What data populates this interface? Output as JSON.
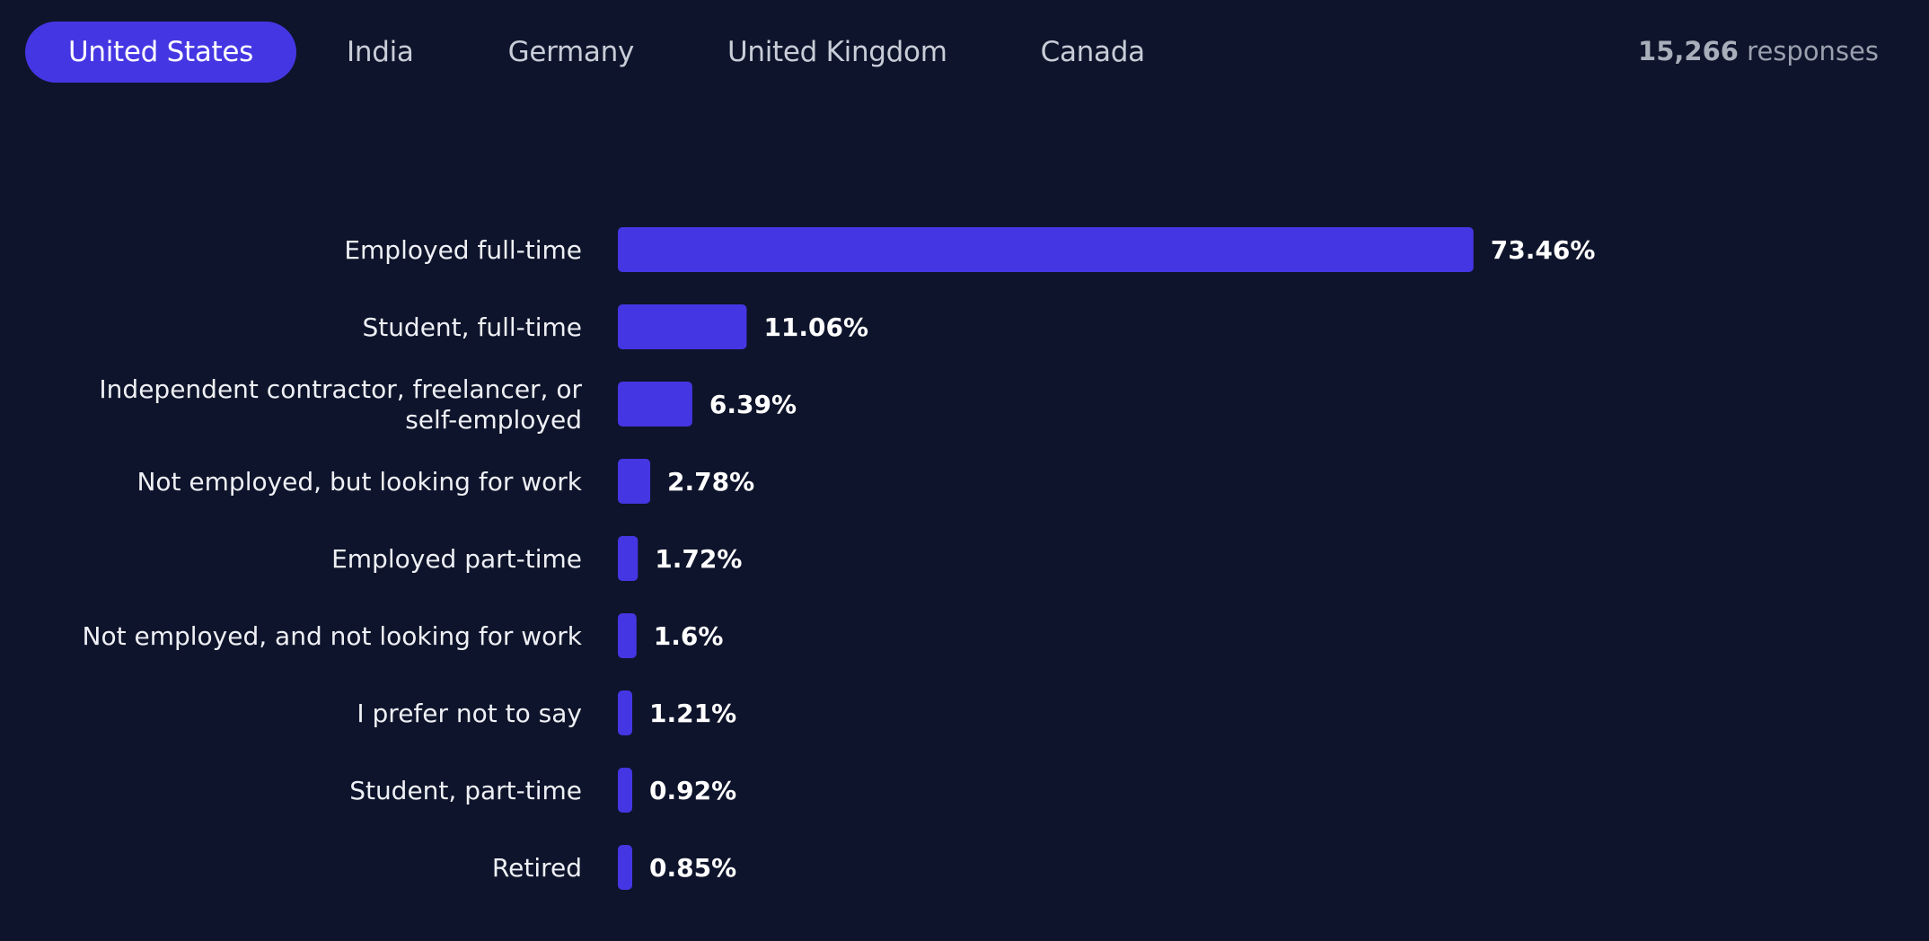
{
  "tabs": [
    {
      "label": "United States",
      "active": true
    },
    {
      "label": "India",
      "active": false
    },
    {
      "label": "Germany",
      "active": false
    },
    {
      "label": "United Kingdom",
      "active": false
    },
    {
      "label": "Canada",
      "active": false
    }
  ],
  "responses": {
    "count": "15,266",
    "label": "responses"
  },
  "colors": {
    "background": "#0e142b",
    "bar": "#4536e3",
    "active_tab": "#4536e3"
  },
  "chart_data": {
    "type": "bar",
    "orientation": "horizontal",
    "categories": [
      [
        "Employed full-time"
      ],
      [
        "Student, full-time"
      ],
      [
        "Independent contractor, freelancer, or",
        "self-employed"
      ],
      [
        "Not employed, but looking for work"
      ],
      [
        "Employed part-time"
      ],
      [
        "Not employed, and not looking for work"
      ],
      [
        "I prefer not to say"
      ],
      [
        "Student, part-time"
      ],
      [
        "Retired"
      ]
    ],
    "values": [
      73.46,
      11.06,
      6.39,
      2.78,
      1.72,
      1.6,
      1.21,
      0.92,
      0.85
    ],
    "value_labels": [
      "73.46%",
      "11.06%",
      "6.39%",
      "2.78%",
      "1.72%",
      "1.6%",
      "1.21%",
      "0.92%",
      "0.85%"
    ],
    "unit": "%",
    "grid": false,
    "legend": "none"
  }
}
